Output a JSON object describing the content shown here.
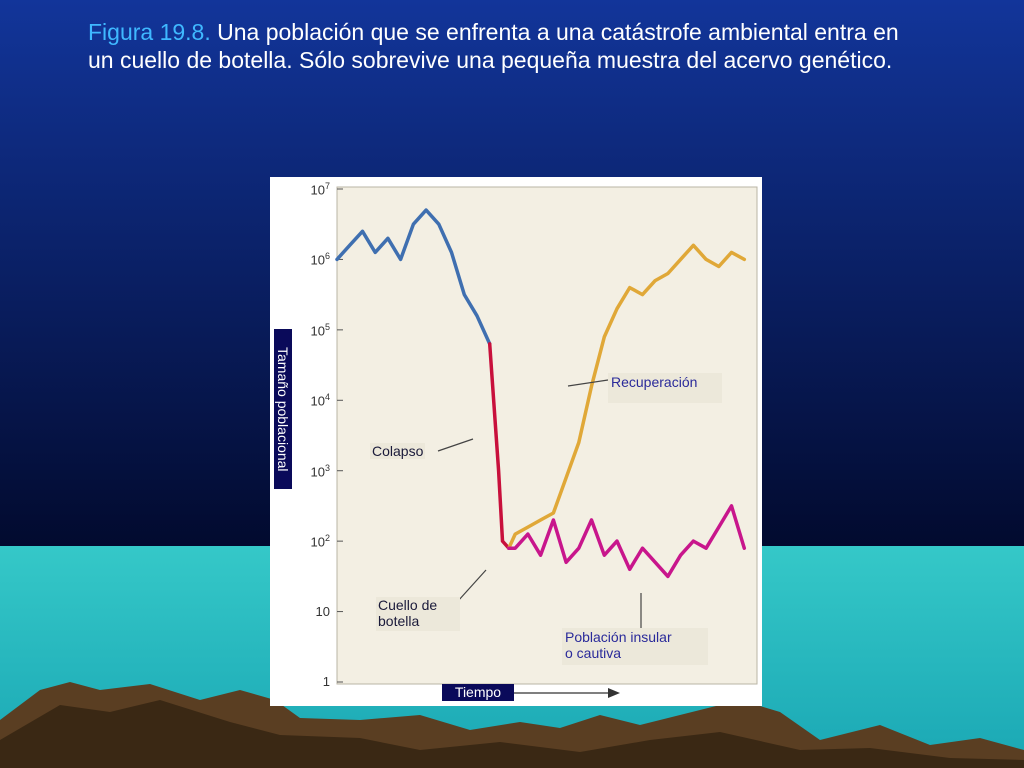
{
  "caption": {
    "figure_label": "Figura 19.8.",
    "text": " Una población que se enfrenta a una catástrofe ambiental entra en un cuello de botella. Sólo sobrevive una pequeña muestra del acervo genético."
  },
  "chart_data": {
    "type": "line",
    "xlabel": "Tiempo",
    "ylabel": "Tamaño poblacional",
    "y_scale": "log",
    "ylim": [
      1,
      10000000
    ],
    "y_ticks": [
      {
        "base": "1",
        "exp": ""
      },
      {
        "base": "10",
        "exp": ""
      },
      {
        "base": "10",
        "exp": "2"
      },
      {
        "base": "10",
        "exp": "3"
      },
      {
        "base": "10",
        "exp": "4"
      },
      {
        "base": "10",
        "exp": "5"
      },
      {
        "base": "10",
        "exp": "6"
      },
      {
        "base": "10",
        "exp": "7"
      }
    ],
    "colors": {
      "pre_collapse": "#3f6fb0",
      "collapse": "#c8103c",
      "recovery": "#e0a838",
      "island": "#c8168c",
      "plot_bg": "#f3efe3"
    },
    "series": [
      {
        "key": "pre_collapse",
        "x": [
          0,
          1,
          2,
          3,
          4,
          5,
          6,
          7,
          8,
          9,
          10,
          11,
          12
        ],
        "y": [
          6.0,
          6.2,
          6.4,
          6.1,
          6.3,
          6.0,
          6.5,
          6.7,
          6.5,
          6.1,
          5.5,
          5.2,
          4.8
        ]
      },
      {
        "key": "collapse",
        "x": [
          12,
          12.7,
          13,
          13.5
        ],
        "y": [
          4.8,
          3.0,
          2.0,
          1.9
        ]
      },
      {
        "key": "recovery",
        "x": [
          13.5,
          14,
          15,
          16,
          17,
          18,
          19,
          20,
          21,
          22,
          23,
          24,
          25,
          26,
          27,
          28,
          29,
          30,
          31,
          32
        ],
        "y": [
          1.9,
          2.1,
          2.2,
          2.3,
          2.4,
          2.9,
          3.4,
          4.2,
          4.9,
          5.3,
          5.6,
          5.5,
          5.7,
          5.8,
          6.0,
          6.2,
          6.0,
          5.9,
          6.1,
          6.0
        ]
      },
      {
        "key": "island",
        "x": [
          13.5,
          14,
          15,
          16,
          17,
          18,
          19,
          20,
          21,
          22,
          23,
          24,
          25,
          26,
          27,
          28,
          29,
          30,
          31,
          32
        ],
        "y": [
          1.9,
          1.9,
          2.1,
          1.8,
          2.3,
          1.7,
          1.9,
          2.3,
          1.8,
          2.0,
          1.6,
          1.9,
          1.7,
          1.5,
          1.8,
          2.0,
          1.9,
          2.2,
          2.5,
          1.9
        ]
      }
    ],
    "annotations": {
      "colapso": "Colapso",
      "cuello_line1": "Cuello de",
      "cuello_line2": "botella",
      "recuperacion": "Recuperación",
      "insular_line1": "Población insular",
      "insular_line2": "o cautiva"
    }
  }
}
